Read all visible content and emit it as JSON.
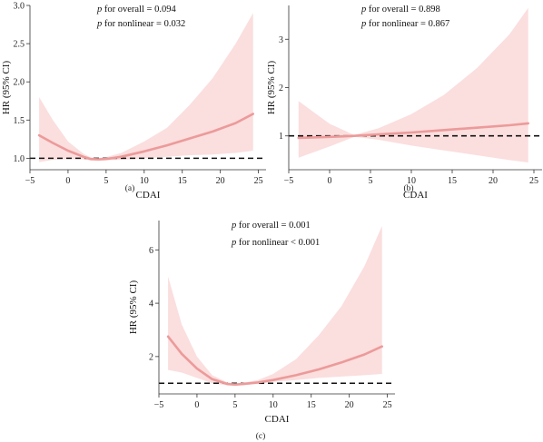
{
  "figure": {
    "panels": [
      "(a)",
      "(b)",
      "(c)"
    ]
  },
  "colors": {
    "curve": "#ec9a9a",
    "band": "#fbdede",
    "reference": "#111111",
    "axis": "#333333"
  },
  "chart_data": [
    {
      "type": "line",
      "panel": "(a)",
      "xlabel": "CDAI",
      "ylabel": "HR (95% CI)",
      "p_overall_label": "for overall = 0.094",
      "p_nonlinear_label": "for nonlinear = 0.032",
      "xlim": [
        -5,
        26
      ],
      "ylim": [
        0.85,
        3.0
      ],
      "xticks": [
        "−5",
        "0",
        "5",
        "10",
        "15",
        "20",
        "25"
      ],
      "xtick_values": [
        -5,
        0,
        5,
        10,
        15,
        20,
        25
      ],
      "yticks": [
        "1.0",
        "1.5",
        "2.0",
        "2.5",
        "3.0"
      ],
      "ytick_values": [
        1.0,
        1.5,
        2.0,
        2.5,
        3.0
      ],
      "reference_line": 1.0,
      "x": [
        -3.8,
        -2,
        0,
        2,
        3,
        4,
        5,
        7,
        10,
        13,
        16,
        19,
        22,
        24.3
      ],
      "y": [
        1.3,
        1.2,
        1.1,
        1.02,
        0.99,
        0.985,
        0.99,
        1.02,
        1.09,
        1.17,
        1.26,
        1.35,
        1.46,
        1.58
      ],
      "ci_lower": [
        0.95,
        0.98,
        0.99,
        0.985,
        0.97,
        0.97,
        0.975,
        0.98,
        1.0,
        1.02,
        1.04,
        1.05,
        1.07,
        1.1
      ],
      "ci_upper": [
        1.8,
        1.5,
        1.22,
        1.06,
        1.01,
        1.005,
        1.015,
        1.07,
        1.22,
        1.4,
        1.7,
        2.05,
        2.5,
        2.9
      ]
    },
    {
      "type": "line",
      "panel": "(b)",
      "xlabel": "CDAI",
      "ylabel": "HR (95% CI)",
      "p_overall_label": "for overall = 0.898",
      "p_nonlinear_label": "for nonlinear = 0.867",
      "xlim": [
        -5,
        26
      ],
      "ylim": [
        0.3,
        3.7
      ],
      "xticks": [
        "−5",
        "0",
        "5",
        "10",
        "15",
        "20",
        "25"
      ],
      "xtick_values": [
        -5,
        0,
        5,
        10,
        15,
        20,
        25
      ],
      "yticks": [
        "1",
        "2",
        "3"
      ],
      "ytick_values": [
        1,
        2,
        3
      ],
      "reference_line": 1.0,
      "x": [
        -3.8,
        0,
        3,
        6,
        10,
        14,
        18,
        22,
        24.3
      ],
      "y": [
        0.96,
        0.98,
        1.0,
        1.03,
        1.07,
        1.12,
        1.17,
        1.22,
        1.26
      ],
      "ci_lower": [
        0.55,
        0.78,
        0.98,
        0.92,
        0.8,
        0.7,
        0.6,
        0.5,
        0.45
      ],
      "ci_upper": [
        1.72,
        1.25,
        1.02,
        1.16,
        1.45,
        1.85,
        2.4,
        3.1,
        3.65
      ]
    },
    {
      "type": "line",
      "panel": "(c)",
      "xlabel": "CDAI",
      "ylabel": "HR (95% CI)",
      "p_overall_label": "for overall = 0.001",
      "p_nonlinear_label": "for nonlinear < 0.001",
      "xlim": [
        -5,
        26
      ],
      "ylim": [
        0.6,
        7.1
      ],
      "xticks": [
        "−5",
        "0",
        "5",
        "10",
        "15",
        "20",
        "25"
      ],
      "xtick_values": [
        -5,
        0,
        5,
        10,
        15,
        20,
        25
      ],
      "yticks": [
        "2",
        "4",
        "6"
      ],
      "ytick_values": [
        2,
        4,
        6
      ],
      "reference_line": 1.0,
      "x": [
        -3.8,
        -2,
        0,
        2,
        4,
        5,
        6,
        8,
        10,
        13,
        16,
        19,
        22,
        24.3
      ],
      "y": [
        2.75,
        2.1,
        1.55,
        1.15,
        0.97,
        0.95,
        0.97,
        1.03,
        1.12,
        1.3,
        1.52,
        1.78,
        2.08,
        2.38
      ],
      "ci_lower": [
        1.5,
        1.4,
        1.2,
        1.0,
        0.92,
        0.91,
        0.92,
        0.98,
        1.05,
        1.12,
        1.2,
        1.25,
        1.3,
        1.35
      ],
      "ci_upper": [
        5.0,
        3.2,
        2.0,
        1.3,
        1.03,
        0.99,
        1.02,
        1.12,
        1.35,
        1.9,
        2.8,
        3.9,
        5.4,
        6.9
      ]
    }
  ]
}
